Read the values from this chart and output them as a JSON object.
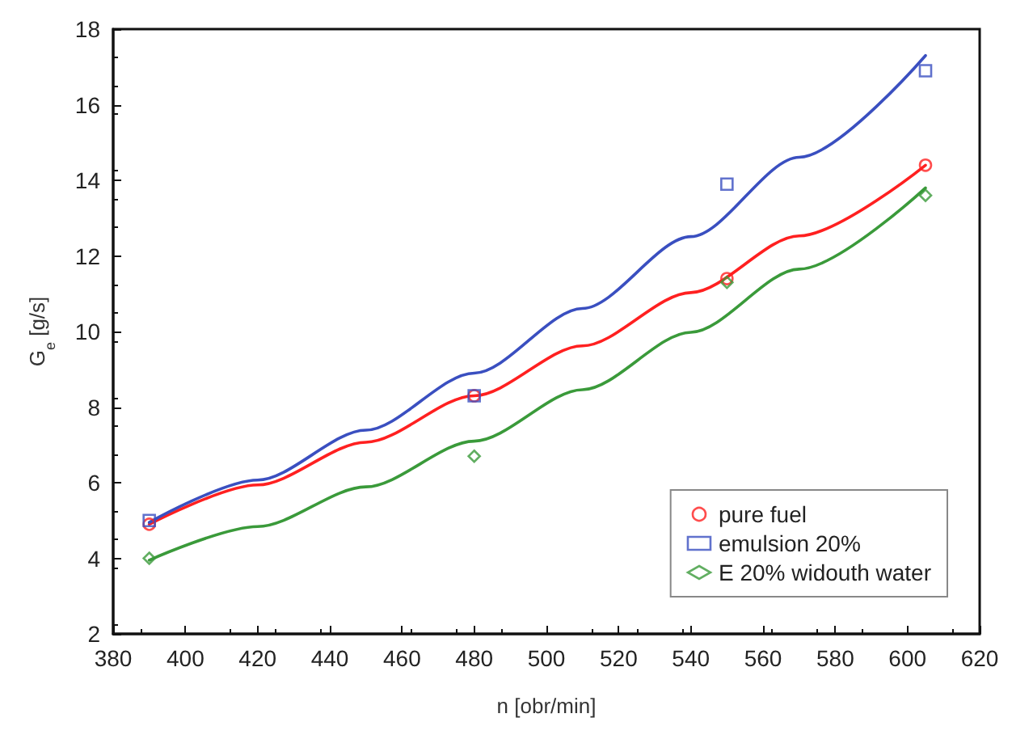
{
  "chart_data": {
    "type": "scatter",
    "xlabel": "n [obr/min]",
    "ylabel": "G$_{e}$ [g/s]",
    "xlim": [
      380,
      620
    ],
    "xticks": [
      380,
      400,
      420,
      440,
      460,
      480,
      500,
      520,
      540,
      560,
      580,
      600,
      620
    ],
    "ylim": [
      2,
      18
    ],
    "yticks": [
      2,
      4,
      6,
      8,
      10,
      12,
      14,
      16,
      18
    ],
    "grid": false,
    "legend": "bottom right",
    "series": [
      {
        "name": "pure fuel",
        "color": "#ff2020",
        "marker": "circle",
        "x": [
          390,
          480,
          550,
          605
        ],
        "values": [
          4.9,
          8.3,
          11.4,
          14.4
        ]
      },
      {
        "name": "emulsion 20%",
        "color": "#3a4fc0",
        "marker": "square",
        "x": [
          390,
          480,
          550,
          605
        ],
        "values": [
          5.0,
          8.3,
          13.9,
          16.9
        ]
      },
      {
        "name": "E 20% widouth water",
        "color": "#3a9a3a",
        "marker": "diamond",
        "x": [
          390,
          480,
          550,
          605
        ],
        "values": [
          4.0,
          6.7,
          11.3,
          13.6
        ]
      },
      {
        "type": "line",
        "color": "#ff2020",
        "marker": "none",
        "x": [
          390,
          420,
          450,
          480,
          510,
          540,
          570,
          605
        ],
        "values": [
          4.9,
          5.94,
          7.07,
          8.3,
          9.62,
          11.03,
          12.53,
          14.4
        ]
      },
      {
        "type": "line",
        "color": "#3a4fc0",
        "marker": "none",
        "x": [
          390,
          420,
          450,
          480,
          510,
          540,
          570,
          605
        ],
        "values": [
          4.95,
          6.07,
          7.39,
          8.9,
          10.61,
          12.51,
          14.61,
          17.3
        ]
      },
      {
        "type": "line",
        "color": "#3a9a3a",
        "marker": "none",
        "x": [
          390,
          420,
          450,
          480,
          510,
          540,
          570,
          605
        ],
        "values": [
          3.95,
          4.84,
          5.89,
          7.1,
          8.46,
          9.98,
          11.65,
          13.8
        ]
      }
    ]
  }
}
